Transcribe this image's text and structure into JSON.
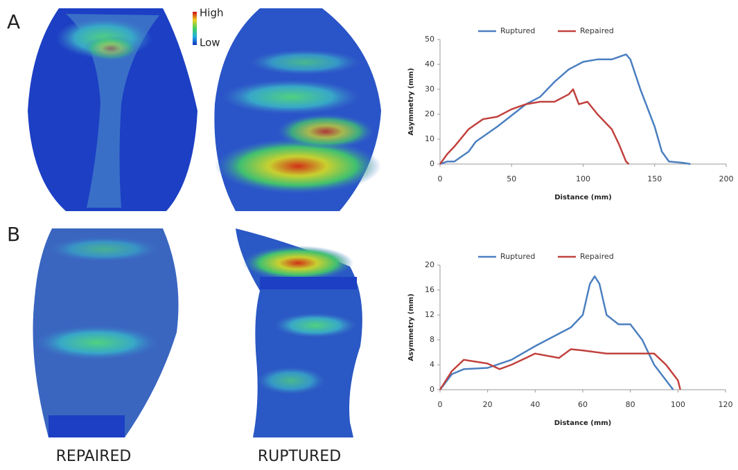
{
  "panels": [
    "A",
    "B"
  ],
  "captions": [
    "REPAIRED",
    "RUPTURED"
  ],
  "colorbar": {
    "high": "High",
    "low": "Low"
  },
  "chart_data": [
    {
      "type": "line",
      "x_label": "Distance (mm)",
      "y_label": "Asymmetry (mm)",
      "xlim": [
        0,
        200
      ],
      "xticks": [
        0,
        50,
        100,
        150,
        200
      ],
      "ylim": [
        0,
        50
      ],
      "yticks": [
        0,
        10,
        20,
        30,
        40,
        50
      ],
      "legend": "top",
      "series": [
        {
          "name": "Ruptured",
          "color": "#4a7fc0",
          "x": [
            0,
            5,
            10,
            20,
            25,
            40,
            60,
            70,
            80,
            90,
            100,
            110,
            120,
            130,
            133,
            140,
            150,
            155,
            160,
            170,
            175
          ],
          "values": [
            0,
            1,
            1,
            5,
            9,
            15,
            24,
            27,
            33,
            38,
            41,
            42,
            42,
            44,
            42,
            30,
            15,
            5,
            1,
            0.5,
            0
          ]
        },
        {
          "name": "Repaired",
          "color": "#c0413d",
          "x": [
            0,
            5,
            10,
            20,
            30,
            40,
            50,
            60,
            70,
            80,
            90,
            93,
            97,
            103,
            110,
            120,
            125,
            130,
            132
          ],
          "values": [
            0,
            4,
            7,
            14,
            18,
            19,
            22,
            24,
            25,
            25,
            28,
            30,
            24,
            25,
            20,
            14,
            8,
            1,
            0
          ]
        }
      ]
    },
    {
      "type": "line",
      "x_label": "Distance (mm)",
      "y_label": "Asymmetry (mm)",
      "xlim": [
        0,
        120
      ],
      "xticks": [
        0,
        20,
        40,
        60,
        80,
        100,
        120
      ],
      "ylim": [
        0,
        20
      ],
      "yticks": [
        0,
        4,
        8,
        12,
        16,
        20
      ],
      "legend": "top",
      "series": [
        {
          "name": "Ruptured",
          "color": "#4a7fc0",
          "x": [
            0,
            5,
            10,
            20,
            30,
            40,
            50,
            55,
            60,
            63,
            65,
            67,
            70,
            75,
            80,
            85,
            90,
            95,
            98
          ],
          "values": [
            0,
            2.5,
            3.3,
            3.5,
            4.8,
            7,
            9,
            10,
            12,
            17,
            18.2,
            17,
            12,
            10.5,
            10.5,
            8,
            4,
            1.5,
            0
          ]
        },
        {
          "name": "Repaired",
          "color": "#c0413d",
          "x": [
            0,
            5,
            10,
            15,
            20,
            25,
            30,
            40,
            50,
            55,
            60,
            70,
            80,
            90,
            95,
            100,
            101
          ],
          "values": [
            0,
            3,
            4.8,
            4.5,
            4.2,
            3.3,
            4,
            5.8,
            5.1,
            6.5,
            6.3,
            5.8,
            5.8,
            5.8,
            4,
            1.5,
            0
          ]
        }
      ]
    }
  ]
}
